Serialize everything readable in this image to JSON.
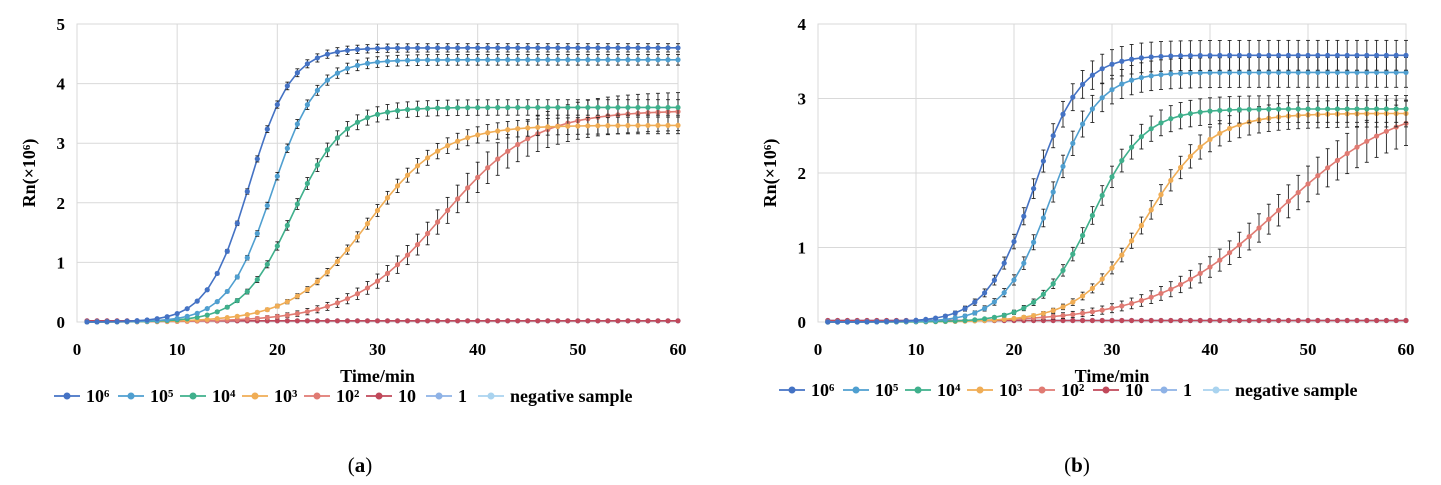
{
  "chart_data": [
    {
      "panel": "a",
      "caption_letter": "a",
      "type": "line",
      "xlabel": "Time/min",
      "ylabel": "Rn(×10⁶)",
      "xlim": [
        0,
        60
      ],
      "ylim": [
        0,
        5
      ],
      "xticks": [
        0,
        10,
        20,
        30,
        40,
        50,
        60
      ],
      "yticks": [
        0,
        1,
        2,
        3,
        4,
        5
      ],
      "grid": true,
      "legend_position": "bottom",
      "series": [
        {
          "name": "10⁶",
          "color": "#4472c4",
          "plateau": 4.6,
          "midpoint": 17.2,
          "slope": 0.48,
          "err": 0.07
        },
        {
          "name": "10⁵",
          "color": "#4f9fd0",
          "plateau": 4.4,
          "midpoint": 19.5,
          "slope": 0.45,
          "err": 0.09
        },
        {
          "name": "10⁴",
          "color": "#3fb08c",
          "plateau": 3.6,
          "midpoint": 21.5,
          "slope": 0.4,
          "err": 0.13
        },
        {
          "name": "10³",
          "color": "#f0ad55",
          "plateau": 3.3,
          "midpoint": 29.0,
          "slope": 0.27,
          "err": 0.14
        },
        {
          "name": "10²",
          "color": "#e07a72",
          "plateau": 3.55,
          "midpoint": 36.5,
          "slope": 0.22,
          "err": 0.32
        },
        {
          "name": "10",
          "color": "#c0485a",
          "plateau": 0.02,
          "midpoint": 0,
          "slope": 0,
          "err": 0
        },
        {
          "name": "1",
          "color": "#8eb2e6",
          "plateau": 0.02,
          "midpoint": 0,
          "slope": 0,
          "err": 0
        },
        {
          "name": "negative sample",
          "color": "#a9d3ef",
          "plateau": 0.02,
          "midpoint": 0,
          "slope": 0,
          "err": 0
        }
      ]
    },
    {
      "panel": "b",
      "caption_letter": "b",
      "type": "line",
      "xlabel": "Time/min",
      "ylabel": "Rn(×10⁶)",
      "xlim": [
        0,
        60
      ],
      "ylim": [
        0,
        4
      ],
      "xticks": [
        0,
        10,
        20,
        30,
        40,
        50,
        60
      ],
      "yticks": [
        0,
        1,
        2,
        3,
        4
      ],
      "grid": true,
      "legend_position": "bottom",
      "series": [
        {
          "name": "10⁶",
          "color": "#4472c4",
          "plateau": 3.58,
          "midpoint": 22.0,
          "slope": 0.42,
          "err": 0.2
        },
        {
          "name": "10⁵",
          "color": "#4f9fd0",
          "plateau": 3.35,
          "midpoint": 23.8,
          "slope": 0.42,
          "err": 0.2
        },
        {
          "name": "10⁴",
          "color": "#3fb08c",
          "plateau": 2.86,
          "midpoint": 28.0,
          "slope": 0.38,
          "err": 0.18
        },
        {
          "name": "10³",
          "color": "#f0ad55",
          "plateau": 2.8,
          "midpoint": 33.5,
          "slope": 0.3,
          "err": 0.18
        },
        {
          "name": "10²",
          "color": "#e07a72",
          "plateau": 3.0,
          "midpoint": 47.0,
          "slope": 0.16,
          "err": 0.32
        },
        {
          "name": "10",
          "color": "#c0485a",
          "plateau": 0.02,
          "midpoint": 0,
          "slope": 0,
          "err": 0
        },
        {
          "name": "1",
          "color": "#8eb2e6",
          "plateau": 0.02,
          "midpoint": 0,
          "slope": 0,
          "err": 0
        },
        {
          "name": "negative sample",
          "color": "#a9d3ef",
          "plateau": 0.02,
          "midpoint": 0,
          "slope": 0,
          "err": 0
        }
      ]
    }
  ]
}
